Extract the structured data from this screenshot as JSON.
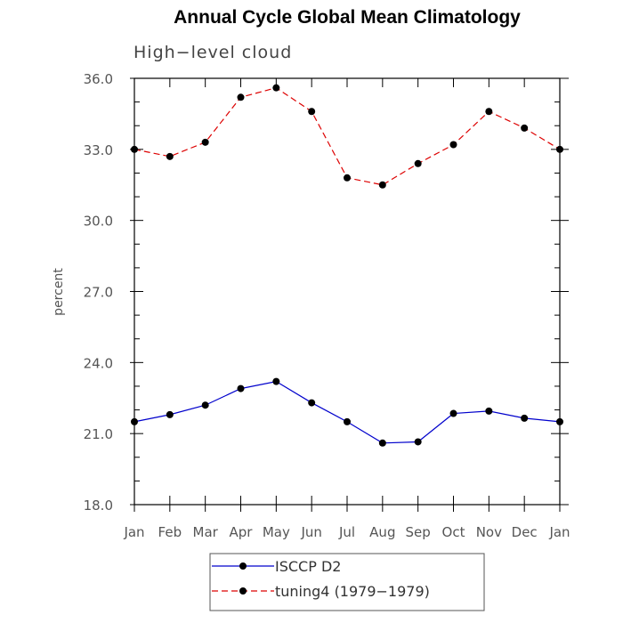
{
  "chart_data": {
    "type": "line",
    "title": "Annual Cycle Global Mean Climatology",
    "subtitle": "High−level cloud",
    "ylabel": "percent",
    "xlabel": "",
    "categories": [
      "Jan",
      "Feb",
      "Mar",
      "Apr",
      "May",
      "Jun",
      "Jul",
      "Aug",
      "Sep",
      "Oct",
      "Nov",
      "Dec",
      "Jan"
    ],
    "ylim": [
      18.0,
      36.0
    ],
    "yticks": [
      "18.0",
      "21.0",
      "24.0",
      "27.0",
      "30.0",
      "33.0",
      "36.0"
    ],
    "series": [
      {
        "name": "ISCCP D2",
        "color": "#0000cc",
        "dash": "solid",
        "values": [
          21.5,
          21.8,
          22.2,
          22.9,
          23.2,
          22.3,
          21.5,
          20.6,
          20.65,
          21.85,
          21.95,
          21.65,
          21.5
        ]
      },
      {
        "name": "tuning4 (1979−1979)",
        "color": "#dd0000",
        "dash": "dashed",
        "values": [
          33.0,
          32.7,
          33.3,
          35.2,
          35.6,
          34.6,
          31.8,
          31.5,
          32.4,
          33.2,
          34.6,
          33.9,
          33.0
        ]
      }
    ],
    "legend_position": "bottom"
  }
}
